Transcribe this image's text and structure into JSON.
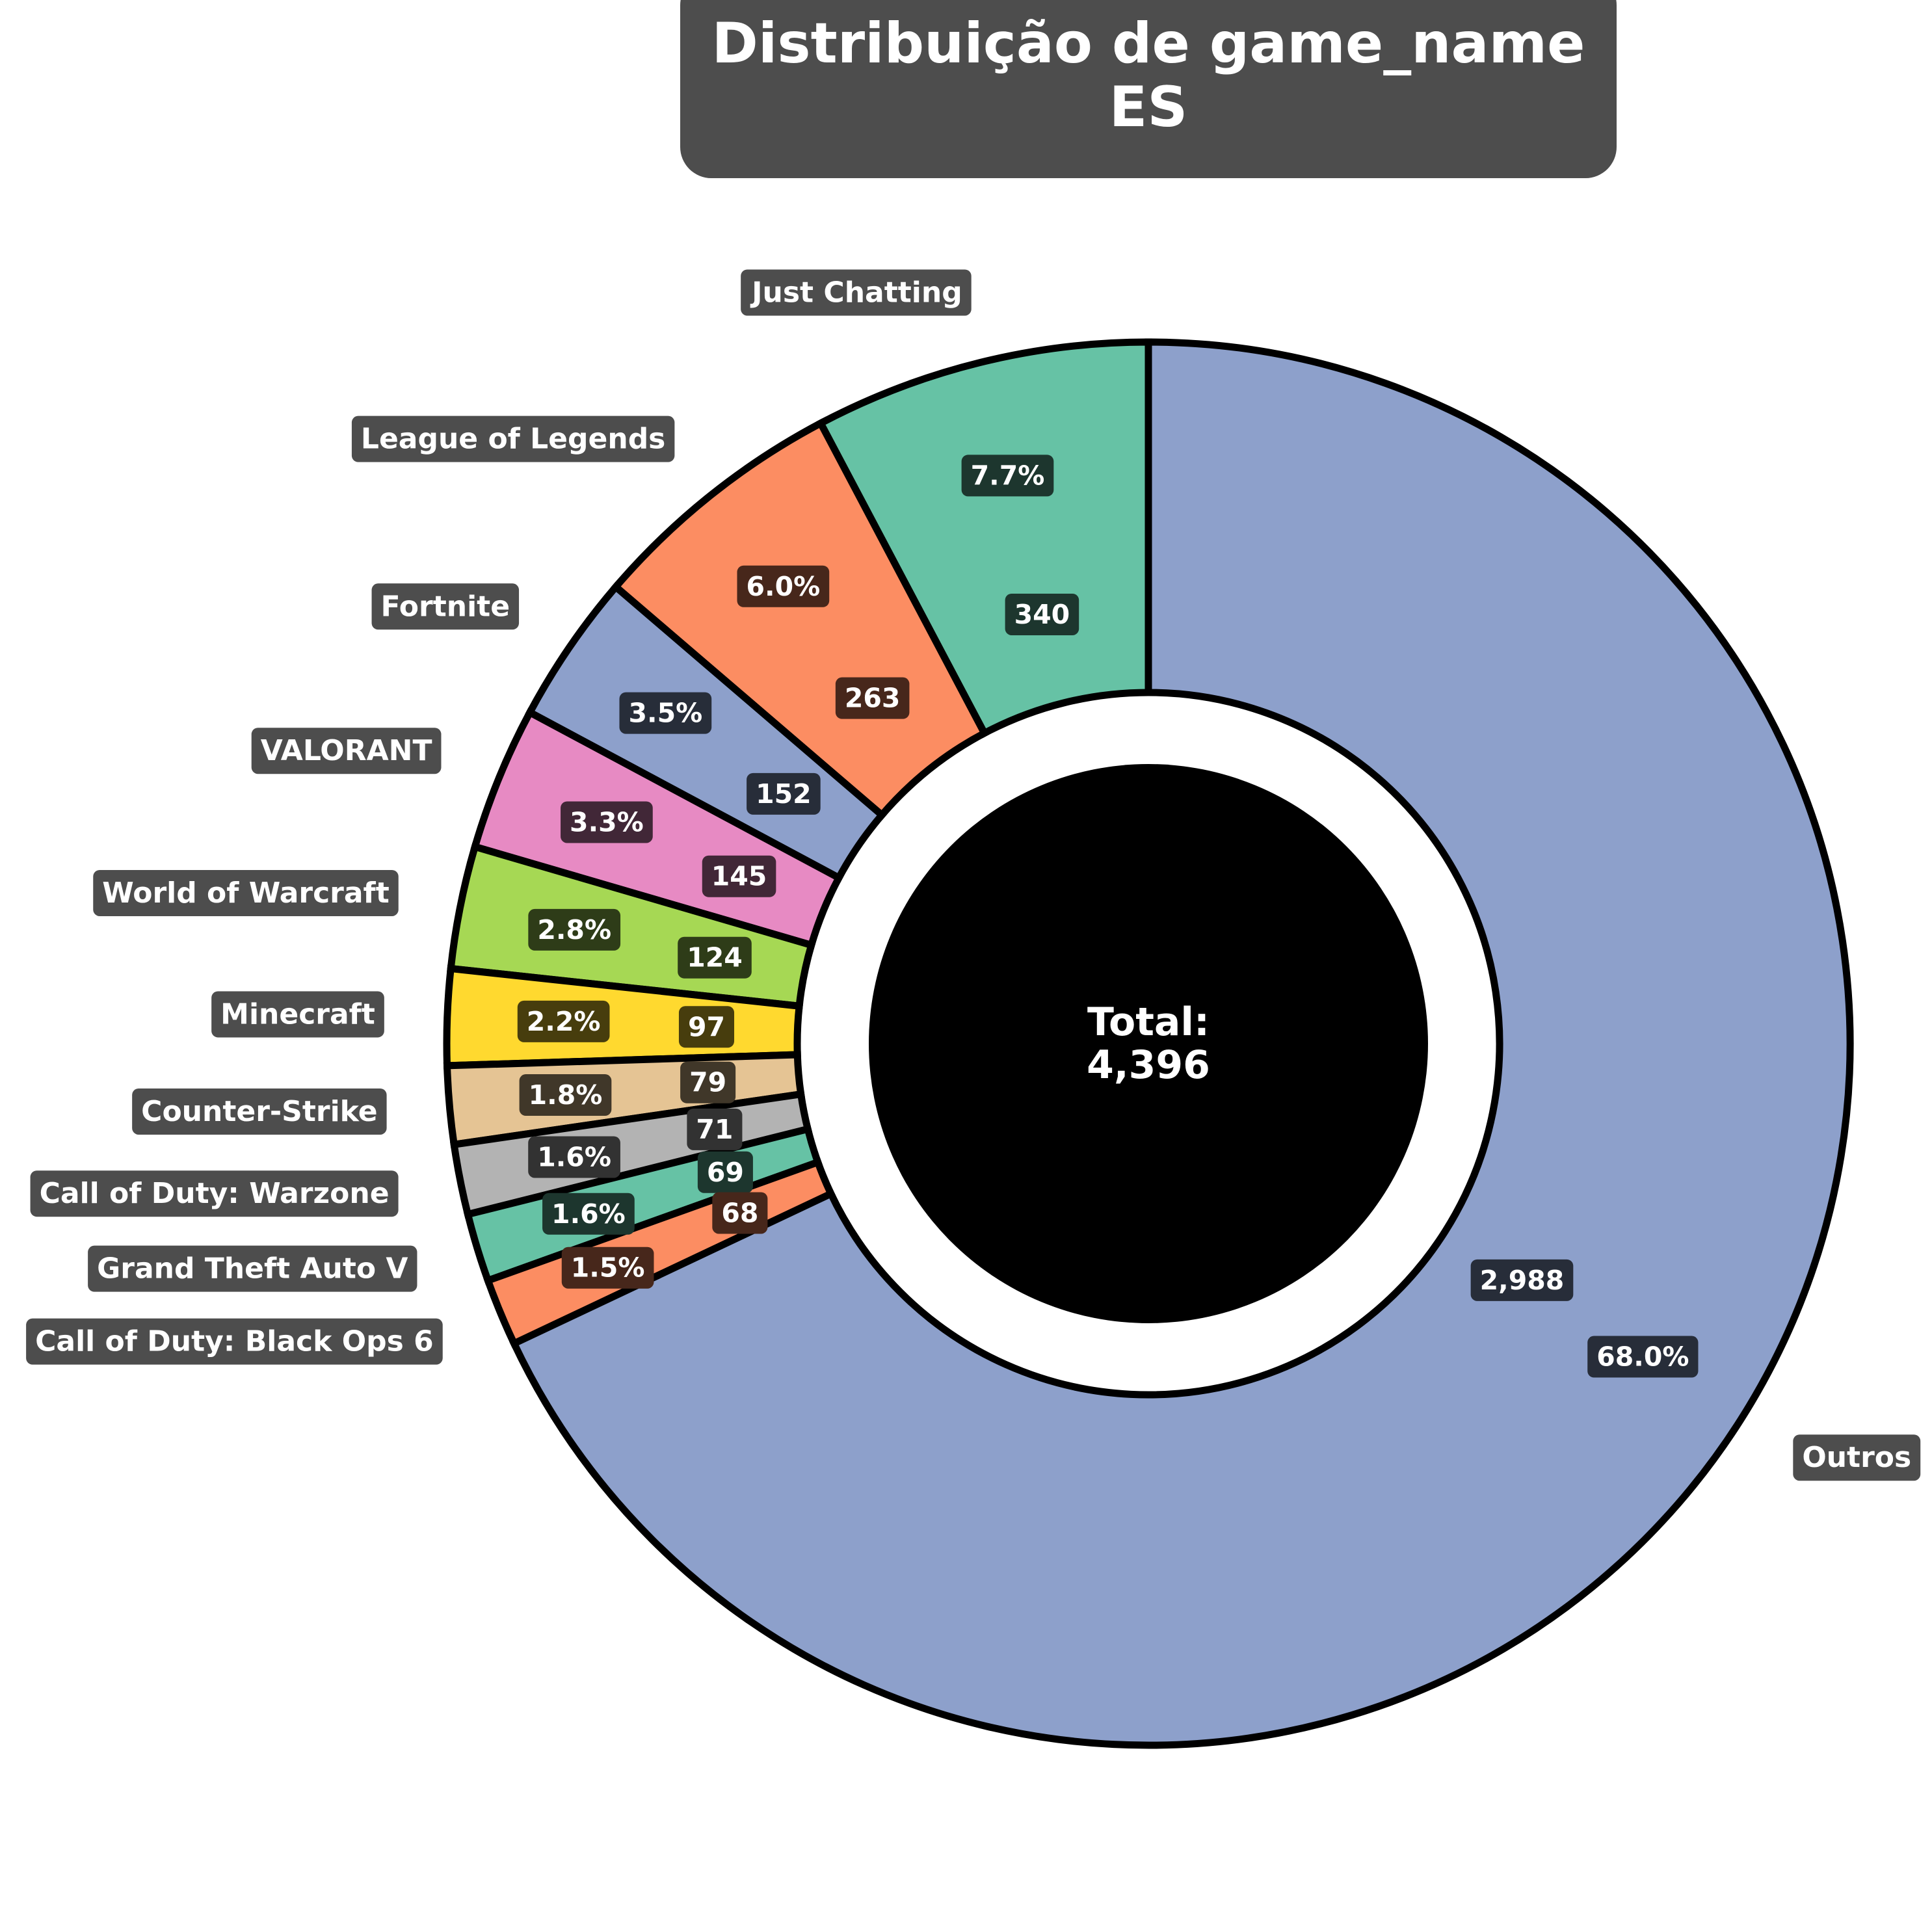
{
  "chart_data": {
    "type": "pie",
    "variant": "donut",
    "title": "Distribuição de game_name\nES",
    "title_lines": [
      "Distribuição de game_name",
      "ES"
    ],
    "center_label": {
      "line1": "Total:",
      "line2": "4,396"
    },
    "total": 4396,
    "start_angle_deg": 90,
    "direction": "counterclockwise",
    "slices": [
      {
        "label": "Just Chatting",
        "value": 340,
        "value_text": "340",
        "pct_text": "7.7%",
        "color": "#66c2a5"
      },
      {
        "label": "League of Legends",
        "value": 263,
        "value_text": "263",
        "pct_text": "6.0%",
        "color": "#fc8d62"
      },
      {
        "label": "Fortnite",
        "value": 152,
        "value_text": "152",
        "pct_text": "3.5%",
        "color": "#8da0cb"
      },
      {
        "label": "VALORANT",
        "value": 145,
        "value_text": "145",
        "pct_text": "3.3%",
        "color": "#e78ac3"
      },
      {
        "label": "World of Warcraft",
        "value": 124,
        "value_text": "124",
        "pct_text": "2.8%",
        "color": "#a6d854"
      },
      {
        "label": "Minecraft",
        "value": 97,
        "value_text": "97",
        "pct_text": "2.2%",
        "color": "#ffd92f"
      },
      {
        "label": "Counter-Strike",
        "value": 79,
        "value_text": "79",
        "pct_text": "1.8%",
        "color": "#e5c494"
      },
      {
        "label": "Call of Duty: Warzone",
        "value": 71,
        "value_text": "71",
        "pct_text": "1.6%",
        "color": "#b3b3b3"
      },
      {
        "label": "Grand Theft Auto V",
        "value": 69,
        "value_text": "69",
        "pct_text": "1.6%",
        "color": "#66c2a5"
      },
      {
        "label": "Call of Duty: Black Ops 6",
        "value": 68,
        "value_text": "68",
        "pct_text": "1.5%",
        "color": "#fc8d62"
      },
      {
        "label": "Outros",
        "value": 2988,
        "value_text": "2,988",
        "pct_text": "68.0%",
        "color": "#8da0cb"
      }
    ],
    "colors": {
      "edge": "#000000",
      "label_box": "#4d4d4d",
      "label_text": "#ffffff",
      "center_disc": "#000000",
      "title_box": "#4d4d4d"
    }
  }
}
